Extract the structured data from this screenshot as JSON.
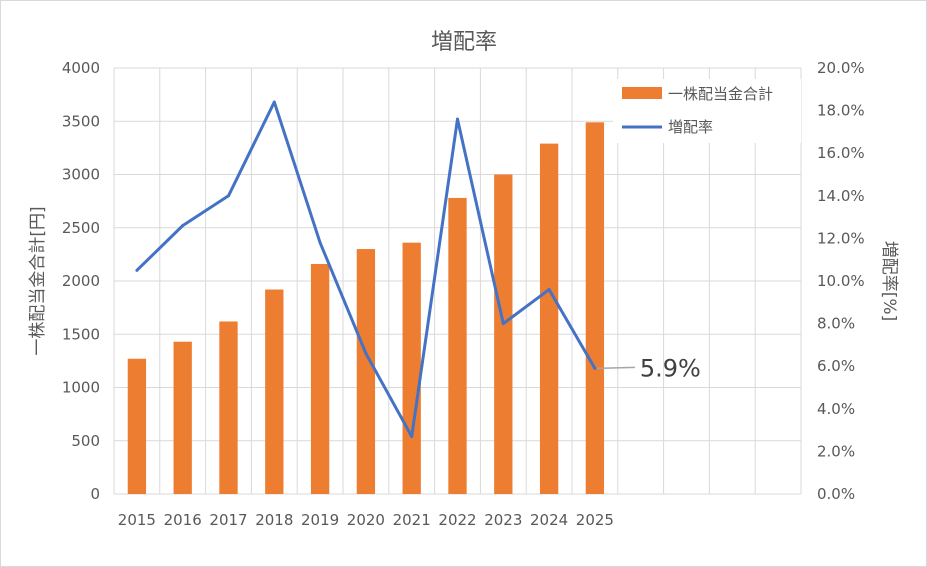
{
  "chart_data": {
    "type": "bar+line",
    "title": "増配率",
    "categories": [
      "2015",
      "2016",
      "2017",
      "2018",
      "2019",
      "2020",
      "2021",
      "2022",
      "2023",
      "2024",
      "2025",
      "",
      "",
      "",
      ""
    ],
    "series": [
      {
        "name": "一株配当金合計",
        "type": "bar",
        "axis": "left",
        "color": "#ED7D31",
        "values": [
          1270,
          1430,
          1620,
          1920,
          2160,
          2300,
          2360,
          2780,
          3000,
          3290,
          3490,
          null,
          null,
          null,
          null
        ]
      },
      {
        "name": "増配率",
        "type": "line",
        "axis": "right",
        "color": "#4472C4",
        "values": [
          10.5,
          12.6,
          14.0,
          18.4,
          11.8,
          6.6,
          2.7,
          17.6,
          8.0,
          9.6,
          5.9,
          null,
          null,
          null,
          null
        ]
      }
    ],
    "y_left": {
      "label": "一株配当金合計[円]",
      "min": 0,
      "max": 4000,
      "step": 500,
      "ticks": [
        "0",
        "500",
        "1000",
        "1500",
        "2000",
        "2500",
        "3000",
        "3500",
        "4000"
      ]
    },
    "y_right": {
      "label": "増配率[%]",
      "min": 0,
      "max": 20,
      "step": 2,
      "ticks": [
        "0.0%",
        "2.0%",
        "4.0%",
        "6.0%",
        "8.0%",
        "10.0%",
        "12.0%",
        "14.0%",
        "16.0%",
        "18.0%",
        "20.0%"
      ]
    },
    "gridlines": "both",
    "legend": {
      "position": "top-right",
      "entries": [
        "一株配当金合計",
        "増配率"
      ]
    },
    "annotation": {
      "text": "5.9%",
      "series": "増配率",
      "category": "2025"
    }
  }
}
